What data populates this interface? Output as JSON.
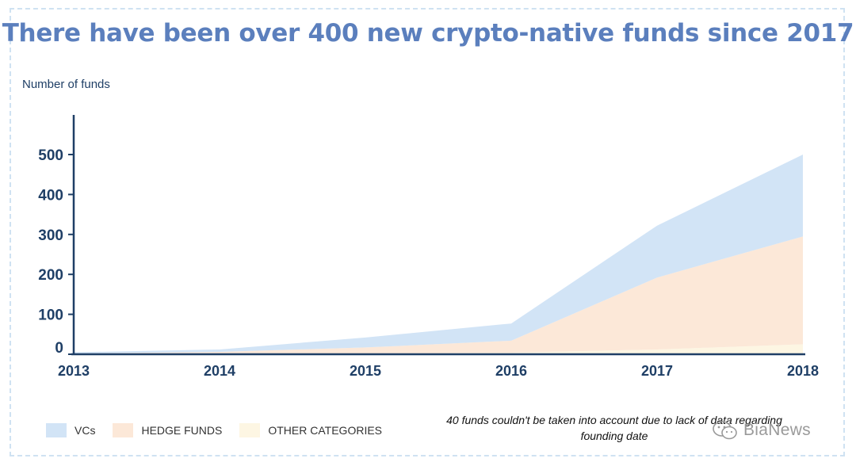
{
  "chart_data": {
    "type": "area",
    "title": "There have been over 400 new crypto-native funds since 2017",
    "ylabel": "Number of funds",
    "xlabel": "",
    "x": [
      "2013",
      "2014",
      "2015",
      "2016",
      "2017",
      "2018"
    ],
    "ylim": [
      0,
      590
    ],
    "yticks": [
      0,
      100,
      200,
      300,
      400,
      500
    ],
    "stacked": true,
    "grid": false,
    "legend_position": "bottom-left",
    "series": [
      {
        "name": "OTHER CATEGORIES",
        "color": "#fdf6e3",
        "values": [
          0,
          1,
          2,
          4,
          12,
          25
        ]
      },
      {
        "name": "HEDGE FUNDS",
        "color": "#fce8d8",
        "values": [
          2,
          5,
          15,
          30,
          180,
          270
        ]
      },
      {
        "name": "VCs",
        "color": "#d2e4f6",
        "values": [
          3,
          6,
          25,
          43,
          130,
          205
        ]
      }
    ],
    "annotation": "40 funds couldn't be taken into account due to lack of data regarding founding date"
  },
  "watermark": "BiaNews",
  "colors": {
    "title": "#5b7fbd",
    "axis": "#1f3f66",
    "frame": "#cfe2f2"
  }
}
